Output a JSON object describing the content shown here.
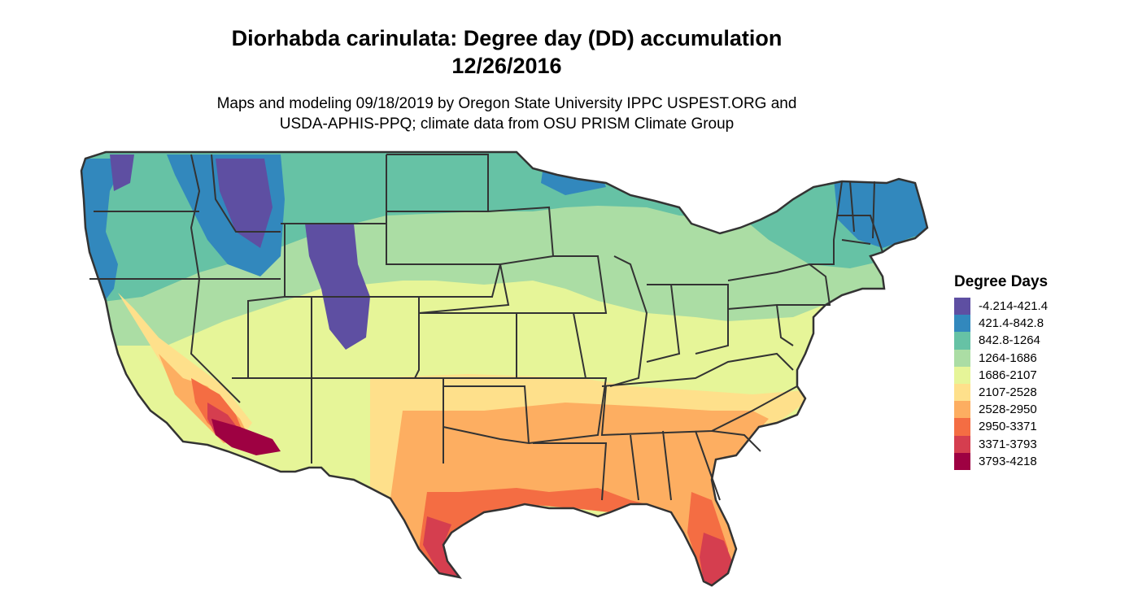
{
  "title": {
    "line1": "Diorhabda carinulata: Degree day (DD) accumulation",
    "line2": "12/26/2016"
  },
  "subtitle": {
    "line1": "Maps and modeling 09/18/2019 by Oregon State University IPPC USPEST.ORG and",
    "line2": "USDA-APHIS-PPQ; climate data from OSU PRISM Climate Group"
  },
  "legend": {
    "title": "Degree Days",
    "items": [
      {
        "label": "-4.214-421.4",
        "color": "#5E4FA2"
      },
      {
        "label": "421.4-842.8",
        "color": "#3288BD"
      },
      {
        "label": "842.8-1264",
        "color": "#66C2A5"
      },
      {
        "label": "1264-1686",
        "color": "#ABDDA4"
      },
      {
        "label": "1686-2107",
        "color": "#E6F598"
      },
      {
        "label": "2107-2528",
        "color": "#FEE08B"
      },
      {
        "label": "2528-2950",
        "color": "#FDAE61"
      },
      {
        "label": "2950-3371",
        "color": "#F46D43"
      },
      {
        "label": "3371-3793",
        "color": "#D53E4F"
      },
      {
        "label": "3793-4218",
        "color": "#9E0142"
      }
    ]
  }
}
